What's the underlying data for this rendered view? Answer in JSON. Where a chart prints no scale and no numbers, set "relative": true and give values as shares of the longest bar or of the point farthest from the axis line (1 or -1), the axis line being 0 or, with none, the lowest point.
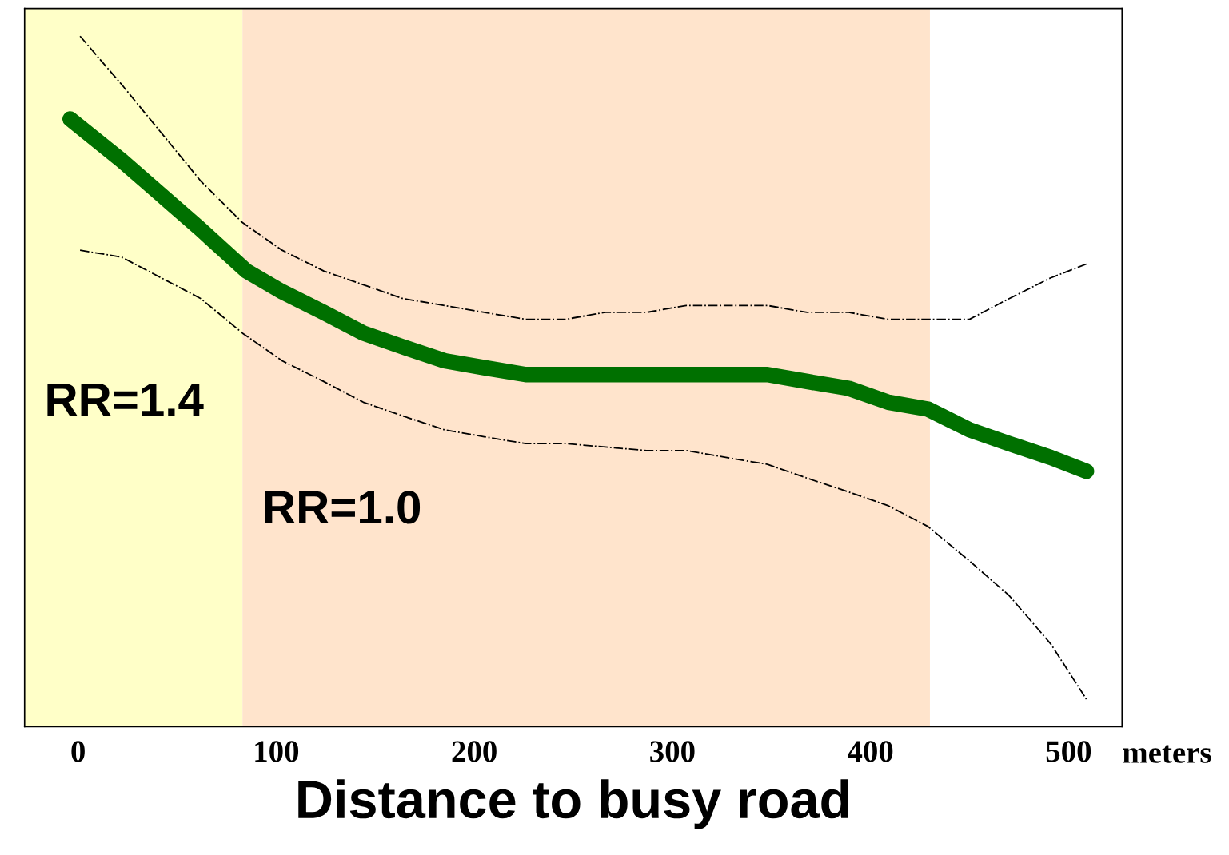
{
  "chart_data": {
    "type": "line",
    "relative": true,
    "xlabel": "Distance to busy road",
    "xlim": [
      -27,
      527
    ],
    "xticks": [
      0,
      100,
      200,
      300,
      400,
      500
    ],
    "series": [
      {
        "color": "#007000",
        "x": [
          -4,
          22,
          42,
          62,
          85,
          103,
          124,
          144,
          164,
          185,
          205,
          226,
          246,
          287,
          327,
          348,
          368,
          389,
          409,
          429,
          450,
          470,
          491,
          509
        ],
        "values": [
          0.88,
          0.82,
          0.77,
          0.72,
          0.66,
          0.63,
          0.6,
          0.57,
          0.55,
          0.53,
          0.52,
          0.51,
          0.51,
          0.51,
          0.51,
          0.51,
          0.5,
          0.49,
          0.47,
          0.46,
          0.43,
          0.41,
          0.39,
          0.37
        ]
      },
      {
        "color": "#000000",
        "line_style": "dashed",
        "x": [
          1,
          22,
          42,
          62,
          83,
          103,
          124,
          144,
          164,
          185,
          205,
          226,
          246,
          266,
          287,
          307,
          327,
          348,
          368,
          389,
          409,
          429,
          450,
          470,
          491,
          509
        ],
        "values": [
          1.0,
          0.93,
          0.86,
          0.79,
          0.73,
          0.69,
          0.66,
          0.64,
          0.62,
          0.61,
          0.6,
          0.59,
          0.59,
          0.6,
          0.6,
          0.61,
          0.61,
          0.61,
          0.6,
          0.6,
          0.59,
          0.59,
          0.59,
          0.62,
          0.65,
          0.67
        ]
      },
      {
        "color": "#000000",
        "line_style": "dashed",
        "x": [
          1,
          22,
          42,
          62,
          83,
          103,
          124,
          144,
          164,
          185,
          205,
          226,
          246,
          287,
          307,
          327,
          348,
          368,
          389,
          409,
          429,
          450,
          470,
          491,
          509
        ],
        "values": [
          0.69,
          0.68,
          0.65,
          0.62,
          0.57,
          0.53,
          0.5,
          0.47,
          0.45,
          0.43,
          0.42,
          0.41,
          0.41,
          0.4,
          0.4,
          0.39,
          0.38,
          0.36,
          0.34,
          0.32,
          0.29,
          0.24,
          0.19,
          0.12,
          0.04
        ]
      }
    ],
    "bands": [
      {
        "axis": "x",
        "from": -27,
        "to": 83,
        "label": "RR=1.4",
        "color": "#ffffc8"
      },
      {
        "axis": "x",
        "from": 83,
        "to": 430,
        "label": "RR=1.0",
        "color": "#ffe4cc"
      }
    ],
    "annotations": [
      "meters"
    ],
    "grid": false,
    "legend": false
  }
}
